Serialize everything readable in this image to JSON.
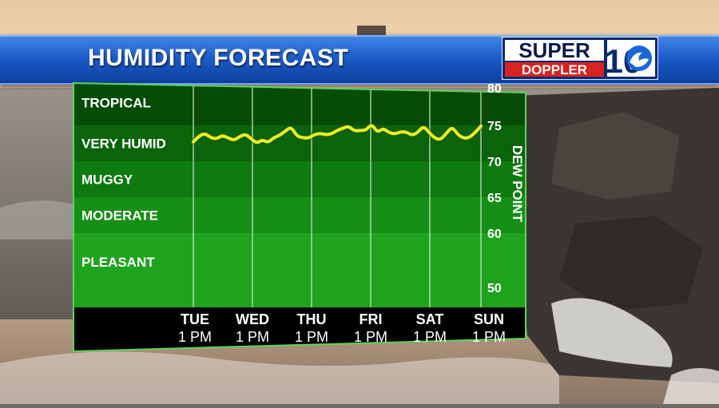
{
  "header": {
    "title": "HUMIDITY FORECAST"
  },
  "logo": {
    "line1": "SUPER",
    "line2": "DOPPLER",
    "number": "10"
  },
  "chart_data": {
    "type": "line",
    "title": "HUMIDITY FORECAST",
    "ylabel": "DEW POINT",
    "ylim": [
      50,
      80
    ],
    "yticks": [
      50,
      60,
      65,
      70,
      75,
      80
    ],
    "bands": [
      {
        "name": "PLEASANT",
        "from": 50,
        "to": 60,
        "color": "#1fa31f"
      },
      {
        "name": "MODERATE",
        "from": 60,
        "to": 65,
        "color": "#168f16"
      },
      {
        "name": "MUGGY",
        "from": 65,
        "to": 70,
        "color": "#0f7a0f"
      },
      {
        "name": "VERY HUMID",
        "from": 70,
        "to": 75,
        "color": "#0b640b"
      },
      {
        "name": "TROPICAL",
        "from": 75,
        "to": 80,
        "color": "#064c06"
      }
    ],
    "x_categories": [
      {
        "day": "TUE",
        "time": "1 PM"
      },
      {
        "day": "WED",
        "time": "1 PM"
      },
      {
        "day": "THU",
        "time": "1 PM"
      },
      {
        "day": "FRI",
        "time": "1 PM"
      },
      {
        "day": "SAT",
        "time": "1 PM"
      },
      {
        "day": "SUN",
        "time": "1 PM"
      }
    ],
    "series": [
      {
        "color": "#e6f026",
        "x": [
          0,
          0.1,
          0.2,
          0.3,
          0.4,
          0.5,
          0.6,
          0.7,
          0.8,
          0.9,
          1.0,
          1.1,
          1.2,
          1.3,
          1.4,
          1.5,
          1.6,
          1.7,
          1.8,
          1.9,
          2.0,
          2.1,
          2.2,
          2.3,
          2.4,
          2.5,
          2.6,
          2.7,
          2.8,
          2.9,
          3.0,
          3.1,
          3.2,
          3.3,
          3.4,
          3.5,
          3.6,
          3.7,
          3.8,
          3.9,
          4.0,
          4.1,
          4.2,
          4.3,
          4.4,
          4.5,
          4.6,
          4.7,
          4.8,
          4.9,
          5.0
        ],
        "y": [
          72.7,
          73.5,
          73.9,
          73.3,
          73.1,
          73.6,
          73.3,
          72.9,
          73.4,
          73.8,
          73.2,
          72.5,
          73.0,
          72.6,
          73.3,
          73.6,
          74.2,
          74.8,
          73.5,
          73.3,
          73.2,
          73.7,
          73.9,
          73.7,
          73.8,
          74.3,
          74.6,
          74.9,
          74.2,
          74.3,
          74.3,
          75.2,
          74.0,
          74.6,
          74.0,
          73.8,
          74.1,
          74.1,
          73.6,
          74.0,
          74.9,
          74.0,
          73.2,
          73.0,
          73.9,
          74.8,
          73.7,
          73.2,
          73.3,
          74.0,
          74.9
        ]
      }
    ]
  }
}
